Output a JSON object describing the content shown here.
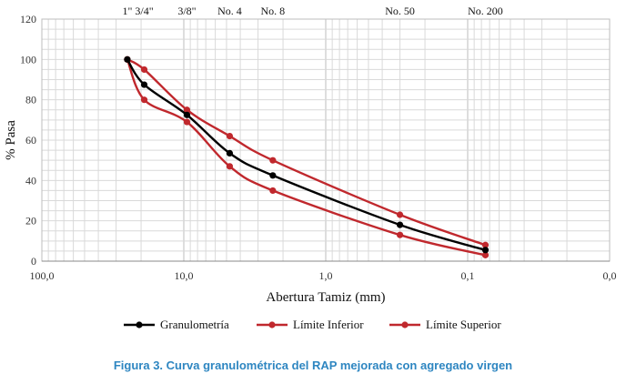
{
  "caption": "Figura 3. Curva granulométrica del RAP mejorada con agregado virgen",
  "chart_data": {
    "type": "line",
    "title": "",
    "xlabel": "Abertura Tamiz (mm)",
    "ylabel": "% Pasa",
    "x_scale": "log",
    "x_reversed": true,
    "xlim": [
      100,
      0.01
    ],
    "ylim": [
      0,
      120
    ],
    "grid": true,
    "legend_position": "bottom",
    "x_tick_labels": [
      "100,0",
      "10,0",
      "1,0",
      "0,1",
      "0,0"
    ],
    "x_tick_values": [
      100,
      10,
      1,
      0.1,
      0.01
    ],
    "y_ticks": [
      0,
      20,
      40,
      60,
      80,
      100,
      120
    ],
    "sieve_labels": [
      {
        "label": "1\"",
        "x": 25
      },
      {
        "label": "3/4\"",
        "x": 19
      },
      {
        "label": "3/8\"",
        "x": 9.5
      },
      {
        "label": "No. 4",
        "x": 4.75
      },
      {
        "label": "No. 8",
        "x": 2.36
      },
      {
        "label": "No. 50",
        "x": 0.3
      },
      {
        "label": "No. 200",
        "x": 0.075
      }
    ],
    "x": [
      25,
      19,
      9.5,
      4.75,
      2.36,
      0.3,
      0.075
    ],
    "series": [
      {
        "name": "Granulometría",
        "color": "#000000",
        "values": [
          100,
          87.5,
          72.5,
          53.5,
          42.5,
          18,
          5.5
        ]
      },
      {
        "name": "Límite Inferior",
        "color": "#c0282d",
        "values": [
          100,
          80,
          69,
          47,
          35,
          13,
          3
        ]
      },
      {
        "name": "Límite Superior",
        "color": "#c0282d",
        "values": [
          100,
          95,
          75,
          62,
          50,
          23,
          8
        ]
      }
    ]
  }
}
